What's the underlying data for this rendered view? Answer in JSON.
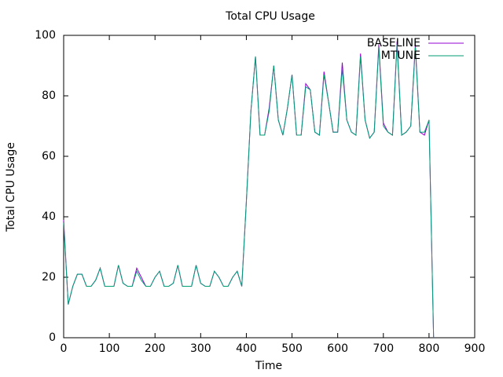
{
  "chart_data": {
    "type": "line",
    "title": "Total CPU Usage",
    "x_label": "Time",
    "y_label": "Total CPU Usage",
    "x": [
      0,
      10,
      20,
      30,
      40,
      50,
      60,
      70,
      80,
      90,
      100,
      110,
      120,
      130,
      140,
      150,
      160,
      170,
      180,
      190,
      200,
      210,
      220,
      230,
      240,
      250,
      260,
      270,
      280,
      290,
      300,
      310,
      320,
      330,
      340,
      350,
      360,
      370,
      380,
      390,
      400,
      410,
      420,
      430,
      440,
      450,
      460,
      470,
      480,
      490,
      500,
      510,
      520,
      530,
      540,
      550,
      560,
      570,
      580,
      590,
      600,
      610,
      620,
      630,
      640,
      650,
      660,
      670,
      680,
      690,
      700,
      710,
      720,
      730,
      740,
      750,
      760,
      770,
      780,
      790,
      800,
      810
    ],
    "series": [
      {
        "name": "BASELINE",
        "color": "#9400d3",
        "values": [
          39,
          11,
          17,
          21,
          21,
          17,
          17,
          19,
          23,
          17,
          17,
          17,
          24,
          18,
          17,
          17,
          23,
          20,
          17,
          17,
          20,
          22,
          17,
          17,
          18,
          24,
          17,
          17,
          17,
          24,
          18,
          17,
          17,
          22,
          20,
          17,
          17,
          20,
          22,
          17,
          45,
          75,
          93,
          67,
          67,
          76,
          90,
          72,
          67,
          76,
          87,
          67,
          67,
          84,
          82,
          68,
          67,
          88,
          78,
          68,
          68,
          91,
          72,
          68,
          67,
          94,
          72,
          66,
          68,
          97,
          71,
          68,
          67,
          98,
          67,
          68,
          70,
          97,
          68,
          67,
          72,
          0
        ]
      },
      {
        "name": "MTUNE",
        "color": "#009e73",
        "values": [
          38,
          11,
          17,
          21,
          21,
          17,
          17,
          19,
          23,
          17,
          17,
          17,
          24,
          18,
          17,
          17,
          22,
          19,
          17,
          17,
          20,
          22,
          17,
          17,
          18,
          24,
          17,
          17,
          17,
          24,
          18,
          17,
          17,
          22,
          20,
          17,
          17,
          20,
          22,
          17,
          45,
          75,
          93,
          67,
          67,
          75,
          90,
          72,
          67,
          76,
          87,
          67,
          67,
          83,
          82,
          68,
          67,
          87,
          78,
          68,
          68,
          89,
          72,
          68,
          67,
          93,
          72,
          66,
          68,
          96,
          70,
          68,
          67,
          97,
          67,
          68,
          70,
          96,
          68,
          68,
          72,
          0
        ]
      }
    ],
    "xlim": [
      0,
      900
    ],
    "xticks": [
      0,
      100,
      200,
      300,
      400,
      500,
      600,
      700,
      800,
      900
    ],
    "ylim": [
      0,
      100
    ],
    "yticks": [
      0,
      20,
      40,
      60,
      80,
      100
    ],
    "grid": false,
    "legend": "top-right"
  }
}
